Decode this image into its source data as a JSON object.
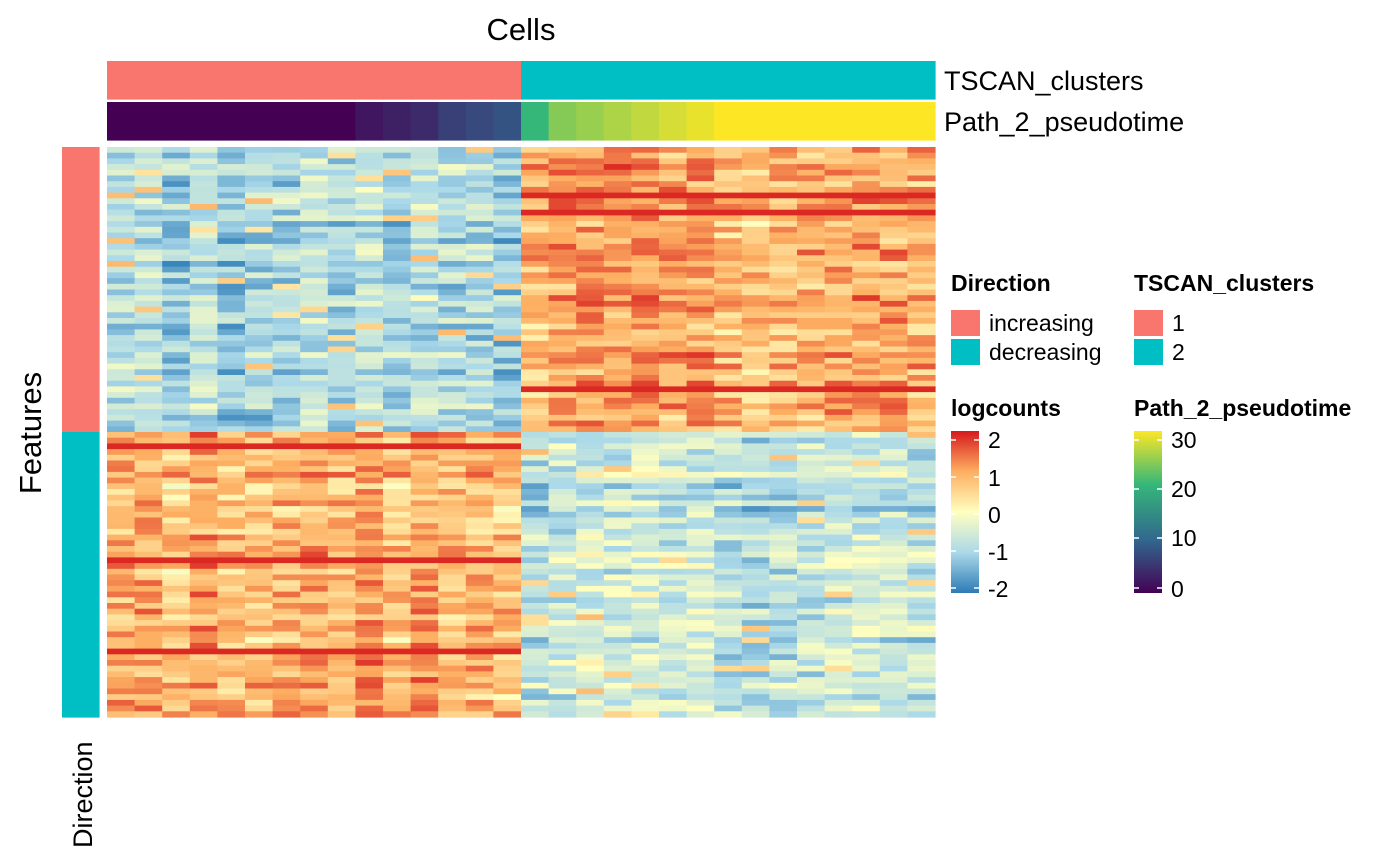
{
  "chart_data": {
    "type": "heatmap",
    "column_title": "Cells",
    "row_title": "Features",
    "row_annotation_label": "Direction",
    "column_annotations": [
      {
        "name": "TSCAN_clusters",
        "values": [
          1,
          1,
          1,
          1,
          1,
          1,
          1,
          1,
          1,
          1,
          1,
          1,
          1,
          1,
          1,
          2,
          2,
          2,
          2,
          2,
          2,
          2,
          2,
          2,
          2,
          2,
          2,
          2,
          2,
          2
        ]
      },
      {
        "name": "Path_2_pseudotime",
        "values": [
          0,
          0,
          0,
          0,
          0,
          0,
          0,
          0,
          0,
          2,
          3,
          4,
          6,
          7,
          8,
          20,
          24,
          25,
          26,
          27,
          28,
          29,
          30,
          30,
          30,
          30,
          30,
          30,
          30,
          30
        ]
      }
    ],
    "row_annotation": {
      "name": "Direction",
      "groups": [
        {
          "label": "increasing",
          "count": 50
        },
        {
          "label": "decreasing",
          "count": 50
        }
      ]
    },
    "n_rows": 100,
    "n_cols": 30,
    "value_range": [
      -2,
      2
    ],
    "note_values": "increasing features: low (~-1) in cluster 1 columns, high (~1) in cluster 2 columns; decreasing features: high in cluster 1, low in cluster 2"
  },
  "legends": {
    "direction": {
      "title": "Direction",
      "items": [
        {
          "label": "increasing",
          "color": "#F8766D"
        },
        {
          "label": "decreasing",
          "color": "#00BFC4"
        }
      ]
    },
    "clusters": {
      "title": "TSCAN_clusters",
      "items": [
        {
          "label": "1",
          "color": "#F8766D"
        },
        {
          "label": "2",
          "color": "#00BFC4"
        }
      ]
    },
    "logcounts": {
      "title": "logcounts",
      "ticks": [
        "2",
        "1",
        "0",
        "-1",
        "-2"
      ],
      "colors": [
        "#D7191C",
        "#FDAE61",
        "#FFFFBF",
        "#ABD9E9",
        "#2C7BB6"
      ]
    },
    "pseudotime": {
      "title": "Path_2_pseudotime",
      "ticks": [
        "30",
        "20",
        "10",
        "0"
      ],
      "colors": [
        "#FDE725",
        "#35B779",
        "#31688E",
        "#440154"
      ]
    }
  }
}
